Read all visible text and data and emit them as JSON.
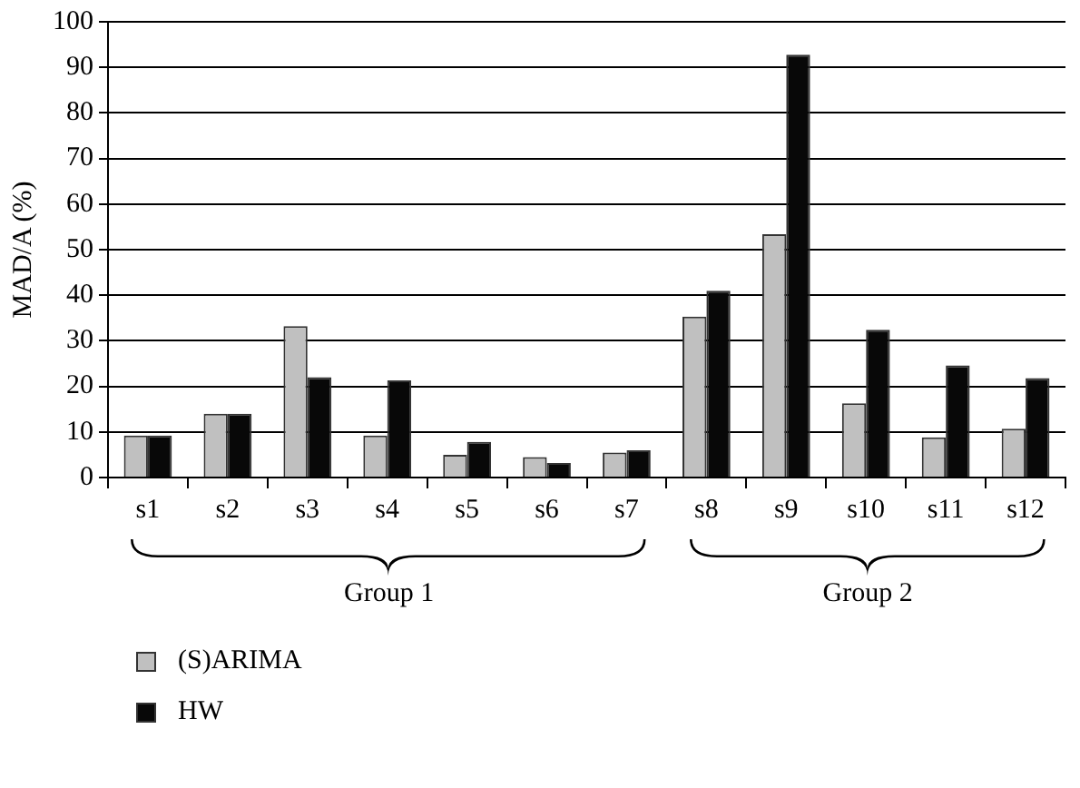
{
  "chart_data": {
    "type": "bar",
    "ylabel": "MAD/A (%)",
    "categories": [
      "s1",
      "s2",
      "s3",
      "s4",
      "s5",
      "s6",
      "s7",
      "s8",
      "s9",
      "s10",
      "s11",
      "s12"
    ],
    "series": [
      {
        "name": "(S)ARIMA",
        "color": "#c0c0c0",
        "values": [
          9.2,
          14,
          33.2,
          9.2,
          5,
          4.5,
          5.5,
          35.3,
          53.4,
          16.3,
          8.8,
          10.7
        ]
      },
      {
        "name": "HW",
        "color": "#080808",
        "values": [
          9.2,
          14,
          22,
          21.3,
          7.8,
          3.2,
          6,
          41,
          92.8,
          32.4,
          24.6,
          21.8
        ]
      }
    ],
    "ylim": [
      0,
      100
    ],
    "yticks": [
      0,
      10,
      20,
      30,
      40,
      50,
      60,
      70,
      80,
      90,
      100
    ],
    "grid": "y",
    "legend": "bottom left",
    "annotations": [
      "Group 1",
      "Group 2"
    ]
  }
}
